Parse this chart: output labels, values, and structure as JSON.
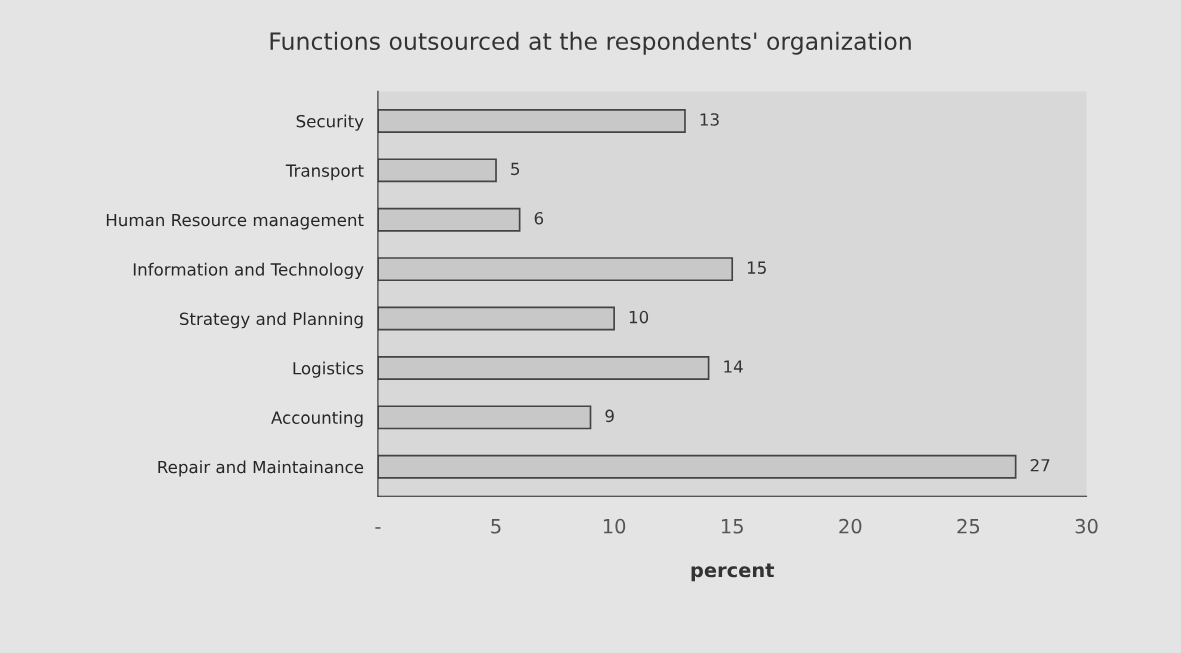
{
  "chart_data": {
    "type": "bar",
    "orientation": "horizontal",
    "title": "Functions outsourced at the respondents' organization",
    "categories": [
      "Security",
      "Transport",
      "Human Resource management",
      "Information and Technology",
      "Strategy and Planning",
      "Logistics",
      "Accounting",
      "Repair and Maintainance"
    ],
    "values": [
      13,
      5,
      6,
      15,
      10,
      14,
      9,
      27
    ],
    "color": "#c8c8c8",
    "xlabel": "percent",
    "xlim": [
      0,
      30
    ],
    "xticks": [
      {
        "value": 0,
        "label": "-"
      },
      5,
      10,
      15,
      20,
      25,
      30
    ],
    "data_labels": true,
    "grid": false,
    "legend": false
  }
}
